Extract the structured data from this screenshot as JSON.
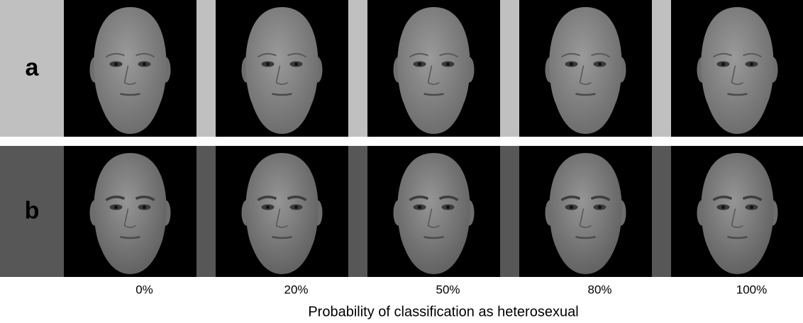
{
  "rows": [
    "a",
    "b"
  ],
  "columns": [
    "0%",
    "20%",
    "50%",
    "80%",
    "100%"
  ],
  "axis_title": "Probability of classification as heterosexual"
}
